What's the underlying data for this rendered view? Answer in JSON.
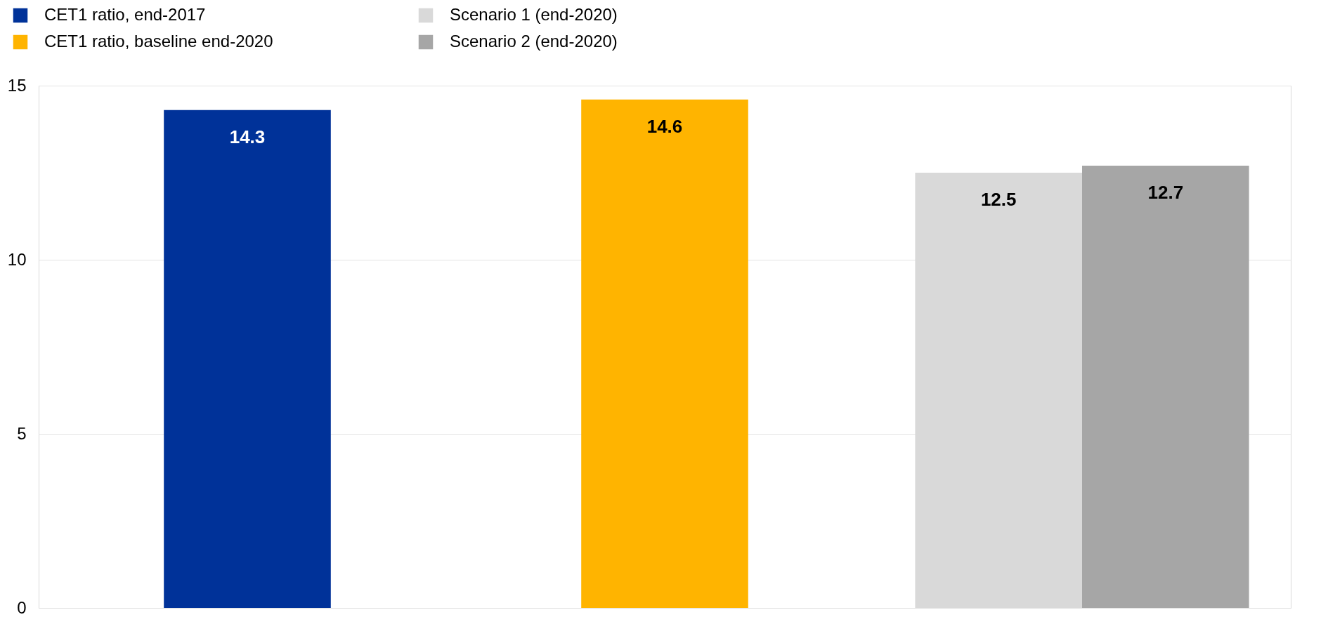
{
  "chart_data": {
    "type": "bar",
    "categories": [
      null,
      null,
      null
    ],
    "series": [
      {
        "name": "CET1 ratio, end-2017",
        "color": "#003299",
        "values": [
          14.3,
          null,
          null
        ]
      },
      {
        "name": "CET1 ratio, baseline end-2020",
        "color": "#ffb400",
        "values": [
          null,
          14.6,
          null
        ]
      },
      {
        "name": "Scenario 1 (end-2020)",
        "color": "#d9d9d9",
        "values": [
          null,
          null,
          12.5
        ]
      },
      {
        "name": "Scenario 2 (end-2020)",
        "color": "#a6a6a6",
        "values": [
          null,
          null,
          12.7
        ]
      }
    ],
    "ylim": [
      0,
      15
    ],
    "yticks": [
      0,
      5,
      10,
      15
    ],
    "grid": "y",
    "legend": "top left",
    "data_labels": true
  }
}
